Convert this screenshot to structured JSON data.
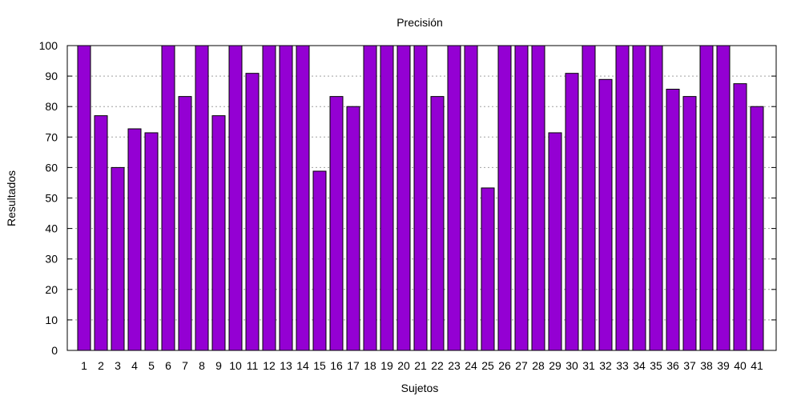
{
  "chart_data": {
    "type": "bar",
    "title": "Precisión",
    "xlabel": "Sujetos",
    "ylabel": "Resultados",
    "categories": [
      "1",
      "2",
      "3",
      "4",
      "5",
      "6",
      "7",
      "8",
      "9",
      "10",
      "11",
      "12",
      "13",
      "14",
      "15",
      "16",
      "17",
      "18",
      "19",
      "20",
      "21",
      "22",
      "23",
      "24",
      "25",
      "26",
      "27",
      "28",
      "29",
      "30",
      "31",
      "32",
      "33",
      "34",
      "35",
      "36",
      "37",
      "38",
      "39",
      "40",
      "41"
    ],
    "values": [
      100,
      77,
      60,
      72.7,
      71.4,
      100,
      83.3,
      100,
      77,
      100,
      90.9,
      100,
      100,
      100,
      58.8,
      83.3,
      80,
      100,
      100,
      100,
      100,
      83.3,
      100,
      100,
      53.3,
      100,
      100,
      100,
      71.4,
      90.9,
      100,
      88.9,
      100,
      100,
      100,
      85.7,
      83.3,
      100,
      100,
      87.5,
      80
    ],
    "ylim": [
      0,
      100
    ],
    "yticks": [
      0,
      10,
      20,
      30,
      40,
      50,
      60,
      70,
      80,
      90,
      100
    ],
    "grid": true,
    "bar_color": "#9400d3",
    "legend": "none"
  }
}
